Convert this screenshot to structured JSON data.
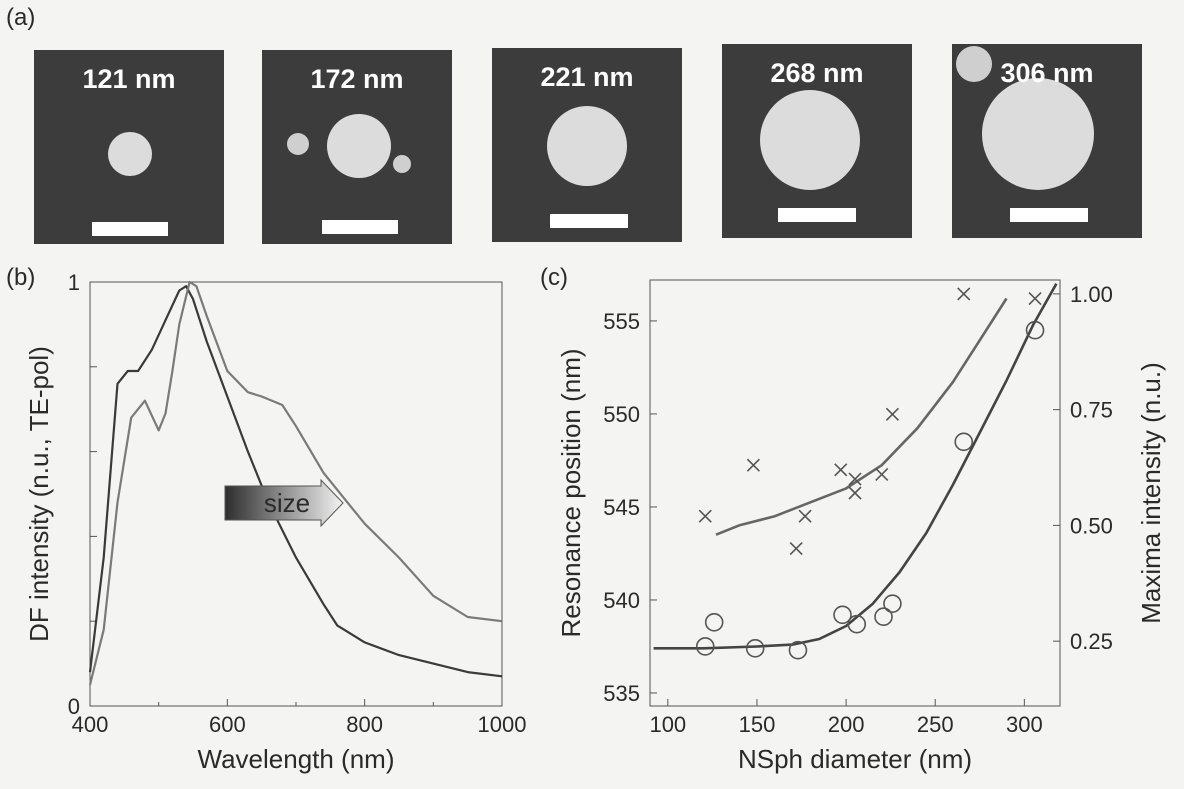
{
  "panels": {
    "a": "(a)",
    "b": "(b)",
    "c": "(c)"
  },
  "sem_images": [
    {
      "label": "121 nm"
    },
    {
      "label": "172 nm"
    },
    {
      "label": "221 nm"
    },
    {
      "label": "268 nm"
    },
    {
      "label": "306 nm"
    }
  ],
  "colors": {
    "background": "#f4f4f2",
    "sem_background": "#3c3c3c",
    "particle": "#dcdcdc",
    "scale_bar": "#ffffff",
    "curve_small": "#3a3a3a",
    "curve_large": "#7a7a7a",
    "crosses": "#555555",
    "circles": "#555555"
  },
  "chart_data": [
    {
      "type": "line",
      "xlabel": "Wavelength (nm)",
      "ylabel": "DF intensity (n.u., TE-pol)",
      "xlim": [
        400,
        1000
      ],
      "ylim": [
        0,
        1
      ],
      "xticks": [
        "400",
        "600",
        "800",
        "1000"
      ],
      "yticks": [
        "0",
        "1"
      ],
      "annotation": "size",
      "series": [
        {
          "x": [
            400,
            420,
            440,
            455,
            470,
            490,
            510,
            530,
            540,
            550,
            570,
            600,
            630,
            660,
            700,
            740,
            760,
            800,
            850,
            900,
            950,
            1000
          ],
          "values": [
            0.08,
            0.35,
            0.76,
            0.79,
            0.79,
            0.84,
            0.91,
            0.98,
            0.99,
            0.96,
            0.86,
            0.73,
            0.6,
            0.48,
            0.35,
            0.24,
            0.19,
            0.15,
            0.12,
            0.1,
            0.08,
            0.07
          ]
        },
        {
          "x": [
            400,
            420,
            440,
            460,
            480,
            500,
            510,
            520,
            530,
            545,
            555,
            570,
            600,
            630,
            650,
            680,
            700,
            740,
            780,
            800,
            850,
            900,
            950,
            1000
          ],
          "values": [
            0.05,
            0.18,
            0.48,
            0.68,
            0.72,
            0.65,
            0.69,
            0.79,
            0.9,
            1.0,
            0.99,
            0.92,
            0.79,
            0.74,
            0.73,
            0.71,
            0.66,
            0.55,
            0.47,
            0.43,
            0.35,
            0.26,
            0.21,
            0.2
          ]
        }
      ]
    },
    {
      "type": "scatter",
      "xlabel": "NSph diameter (nm)",
      "ylabel": "Resonance position (nm)",
      "y2label": "Maxima intensity (n.u.)",
      "xlim": [
        90,
        320
      ],
      "ylim": [
        534.3,
        557.2
      ],
      "y2lim": [
        0.11,
        1.03
      ],
      "xticks": [
        "100",
        "150",
        "200",
        "250",
        "300"
      ],
      "yticks": [
        "535",
        "540",
        "545",
        "550",
        "555"
      ],
      "y2ticks": [
        "0.25",
        "0.50",
        "0.75",
        "1.00"
      ],
      "series": [
        {
          "marker": "circle",
          "axis": "left",
          "x": [
            121,
            126,
            149,
            173,
            198,
            206,
            221,
            226,
            266,
            306
          ],
          "values": [
            537.5,
            538.8,
            537.4,
            537.3,
            539.2,
            538.7,
            539.1,
            539.8,
            548.5,
            554.5
          ]
        },
        {
          "marker": "cross",
          "axis": "right",
          "x": [
            121,
            148,
            172,
            177,
            197,
            205,
            205,
            220,
            226,
            266,
            306
          ],
          "values": [
            0.52,
            0.63,
            0.45,
            0.52,
            0.62,
            0.6,
            0.57,
            0.61,
            0.74,
            1.0,
            0.99
          ]
        },
        {
          "type": "fit",
          "axis": "left",
          "x": [
            92,
            120,
            150,
            170,
            185,
            200,
            215,
            230,
            245,
            260,
            275,
            290,
            305,
            318
          ],
          "values": [
            537.4,
            537.4,
            537.5,
            537.6,
            537.9,
            538.6,
            539.8,
            541.5,
            543.6,
            546.2,
            549.0,
            551.8,
            554.8,
            557.0
          ]
        },
        {
          "type": "fit",
          "axis": "right",
          "x": [
            127,
            140,
            160,
            180,
            200,
            220,
            240,
            260,
            275,
            290
          ],
          "values": [
            0.48,
            0.5,
            0.52,
            0.55,
            0.58,
            0.63,
            0.71,
            0.81,
            0.9,
            0.99
          ]
        }
      ]
    }
  ]
}
